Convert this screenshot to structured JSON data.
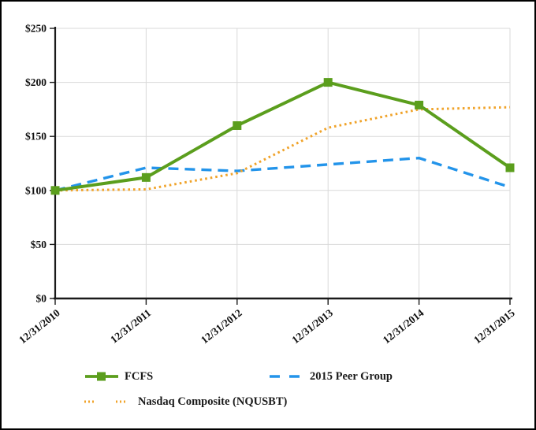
{
  "frame": {
    "background": "#ffffff",
    "border_color": "#000000"
  },
  "chart_data": {
    "type": "line",
    "title": "",
    "x_labels": [
      "12/31/2010",
      "12/31/2011",
      "12/31/2012",
      "12/31/2013",
      "12/31/2014",
      "12/31/2015"
    ],
    "y_tick_labels": [
      "$0",
      "$50",
      "$100",
      "$150",
      "$200",
      "$250"
    ],
    "y_tick_values": [
      0,
      50,
      100,
      150,
      200,
      250
    ],
    "ylim": [
      0,
      250
    ],
    "grid": true,
    "legend_position": "bottom",
    "axis_color": "#1a1a1a",
    "gridline_color": "#d9d9d9",
    "series": [
      {
        "name": "FCFS",
        "color": "#5b9e1d",
        "style": "solid",
        "marker": "square",
        "values": [
          100,
          112,
          160,
          200,
          179,
          121
        ]
      },
      {
        "name": "2015 Peer Group",
        "color": "#2394ea",
        "style": "dashed",
        "marker": "none",
        "values": [
          100,
          121,
          118,
          124,
          130,
          103
        ]
      },
      {
        "name": "Nasdaq Composite (NQUSBT)",
        "color": "#f0a32a",
        "style": "dotted",
        "marker": "none",
        "values": [
          100,
          101,
          116,
          158,
          175,
          177
        ]
      }
    ]
  }
}
